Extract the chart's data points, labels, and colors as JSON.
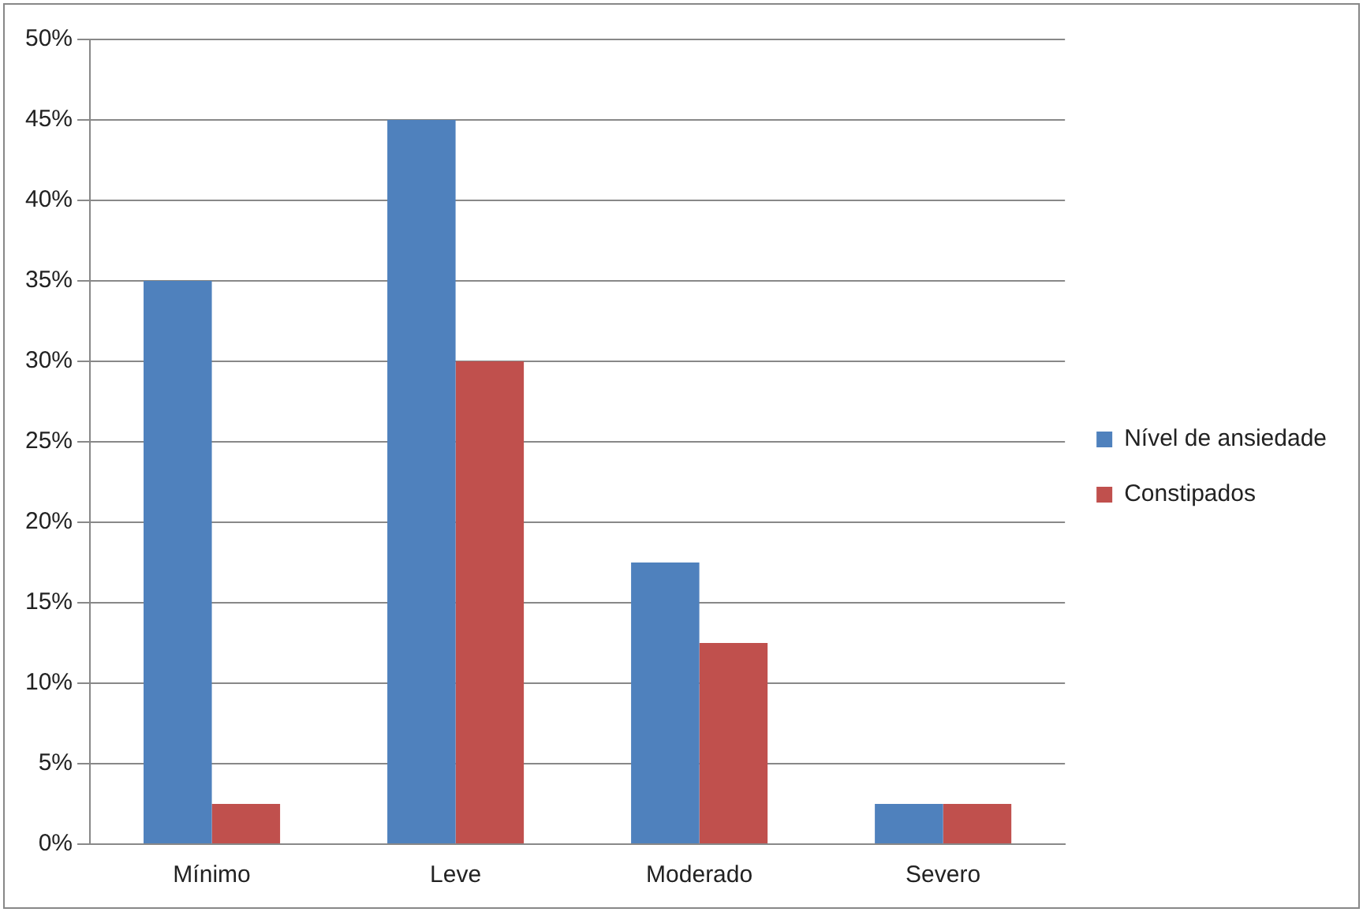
{
  "chart_data": {
    "type": "bar",
    "categories": [
      "Mínimo",
      "Leve",
      "Moderado",
      "Severo"
    ],
    "series": [
      {
        "name": "Nível de ansiedade",
        "color": "#4f81bd",
        "values": [
          35,
          45,
          17.5,
          2.5
        ]
      },
      {
        "name": "Constipados",
        "color": "#c0504d",
        "values": [
          2.5,
          30,
          12.5,
          2.5
        ]
      }
    ],
    "ylim": [
      0,
      50
    ],
    "yticks": [
      {
        "value": 0,
        "label": "0%"
      },
      {
        "value": 5,
        "label": "5%"
      },
      {
        "value": 10,
        "label": "10%"
      },
      {
        "value": 15,
        "label": "15%"
      },
      {
        "value": 20,
        "label": "20%"
      },
      {
        "value": 25,
        "label": "25%"
      },
      {
        "value": 30,
        "label": "30%"
      },
      {
        "value": 35,
        "label": "35%"
      },
      {
        "value": 40,
        "label": "40%"
      },
      {
        "value": 45,
        "label": "45%"
      },
      {
        "value": 50,
        "label": "50%"
      }
    ],
    "grid": "y",
    "legend": "right"
  }
}
